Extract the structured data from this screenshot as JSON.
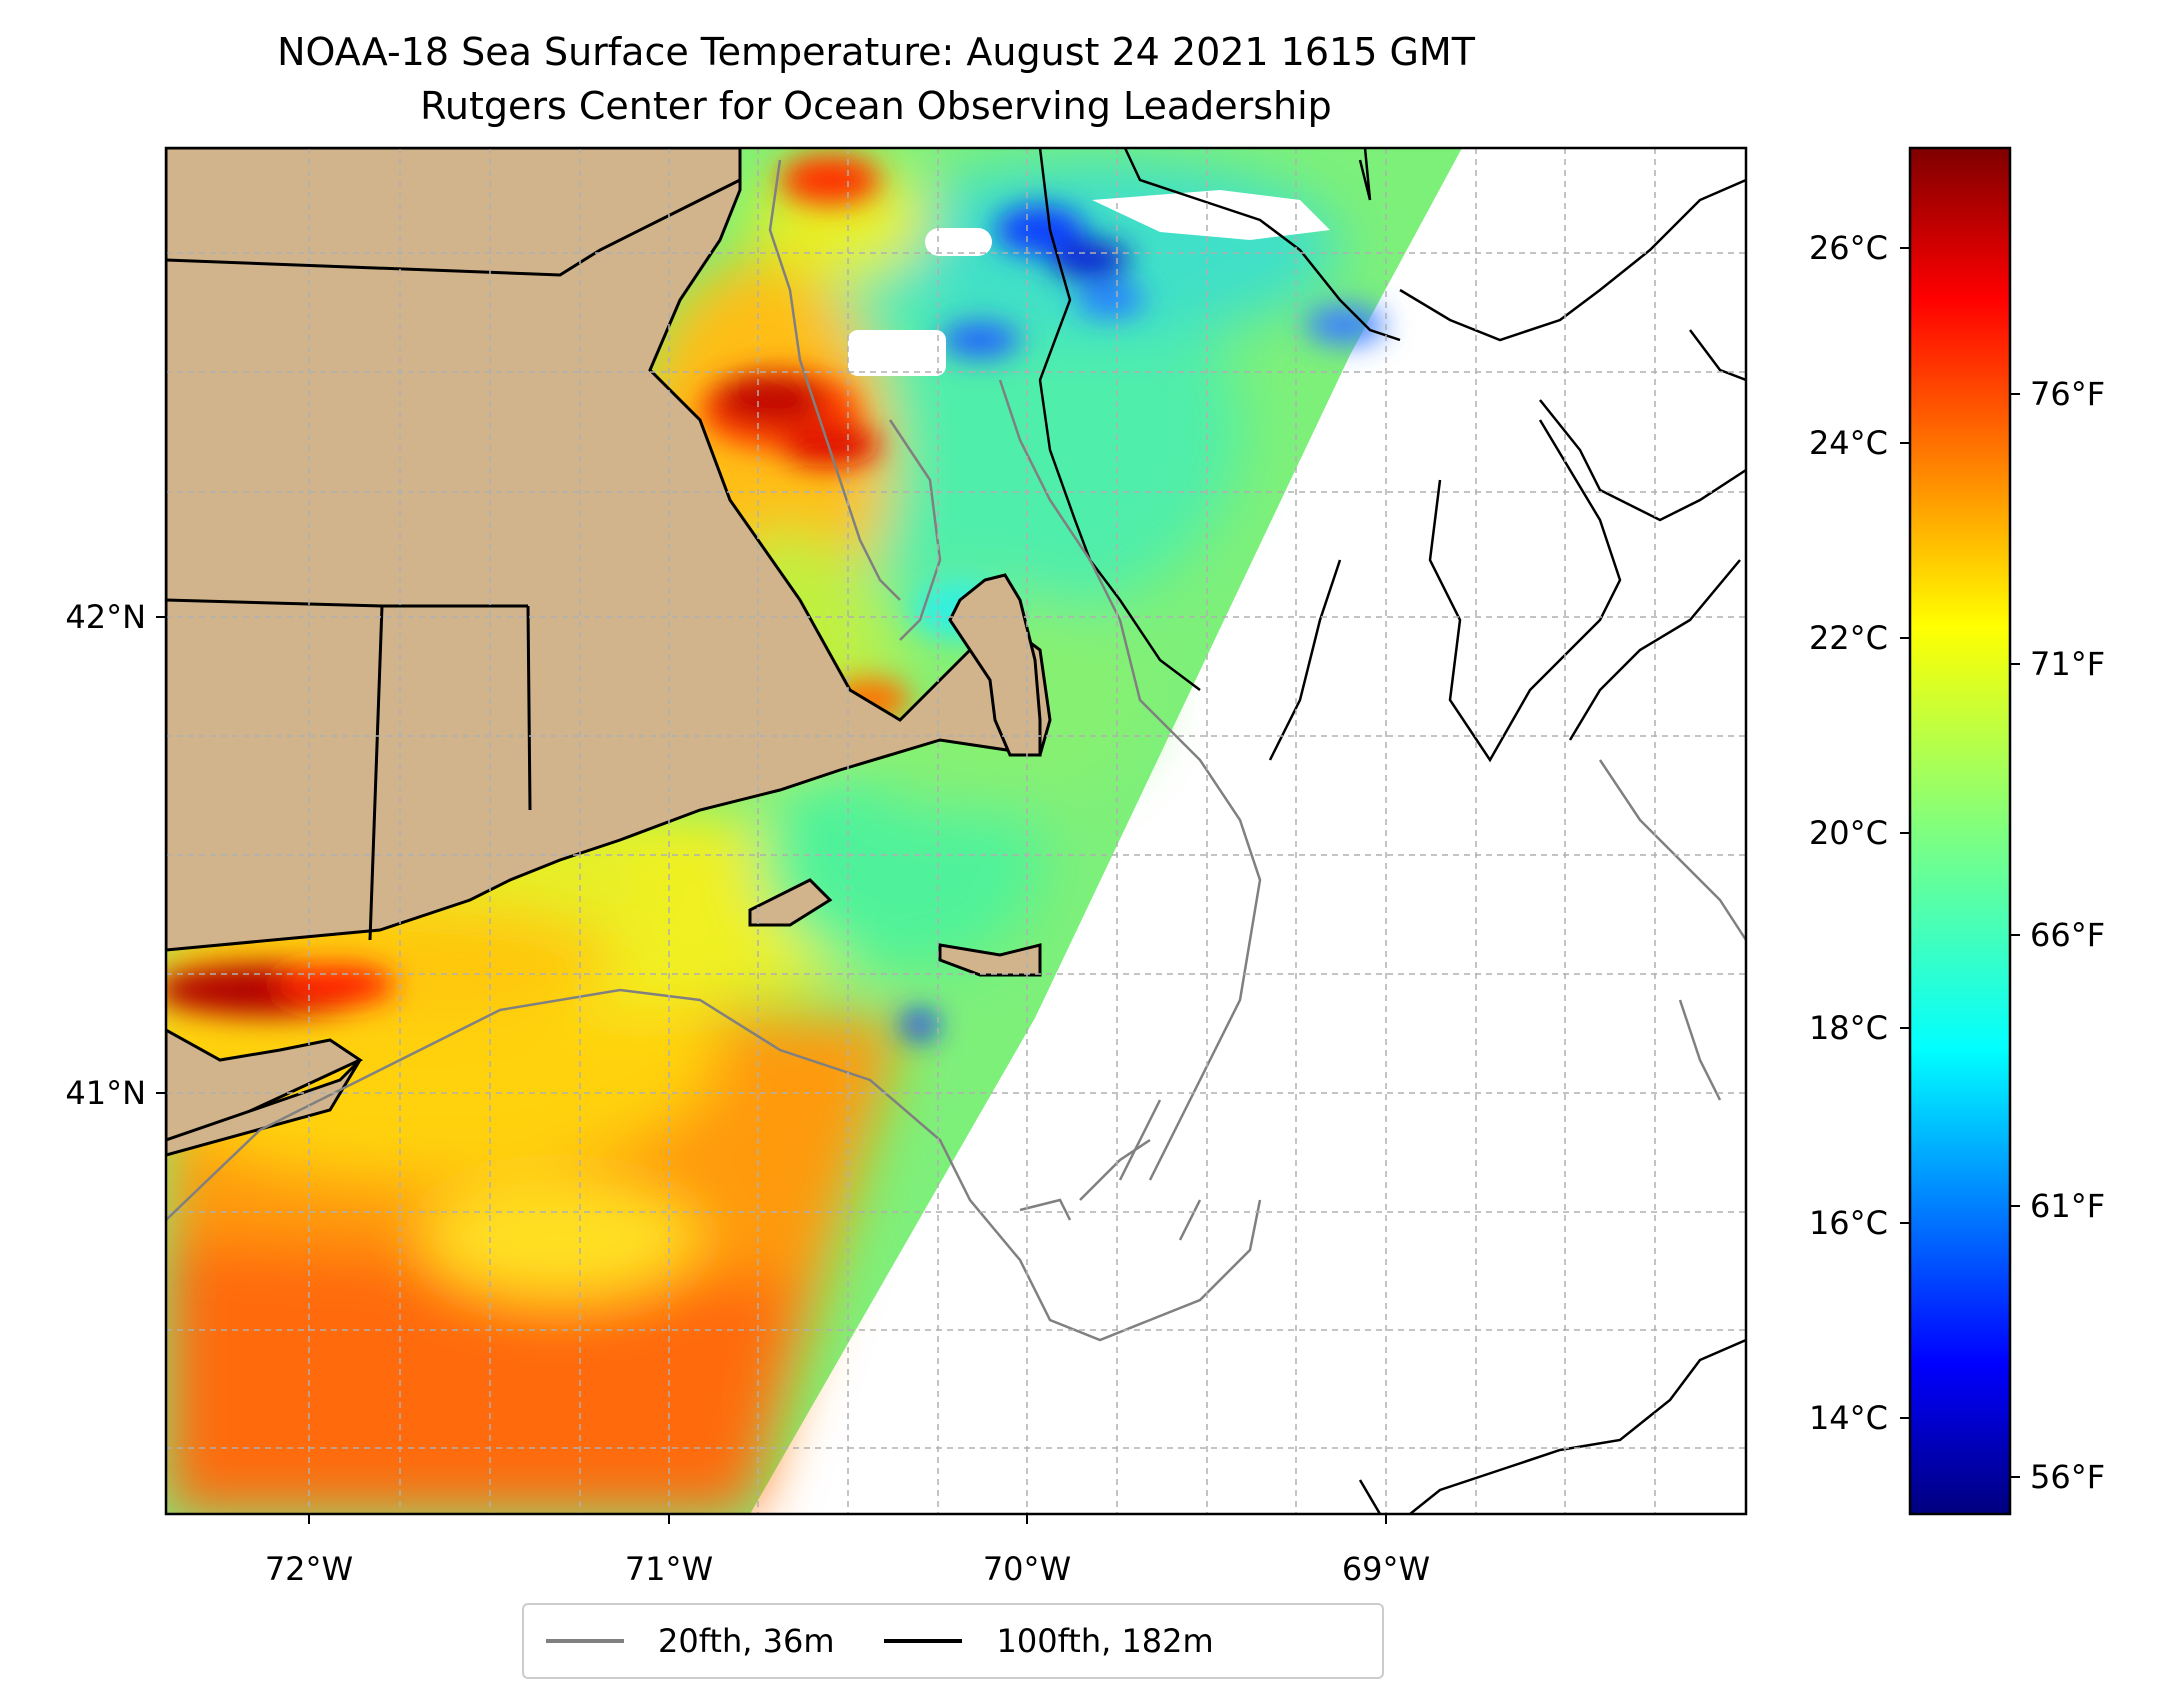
{
  "title": {
    "line1": "NOAA-18 Sea Surface Temperature: August 24 2021 1615 GMT",
    "line2": "Rutgers Center for Ocean Observing Leadership"
  },
  "map": {
    "lon_labels": [
      "72°W",
      "71°W",
      "70°W",
      "69°W"
    ],
    "lat_labels": [
      "42°N",
      "41°N"
    ],
    "land_color": "#d2b48c",
    "gridlines": true
  },
  "colorbar": {
    "celsius_ticks": [
      "26°C",
      "24°C",
      "22°C",
      "20°C",
      "18°C",
      "16°C",
      "14°C"
    ],
    "fahrenheit_ticks": [
      "76°F",
      "71°F",
      "66°F",
      "61°F",
      "56°F"
    ],
    "colormap": "jet",
    "colors": [
      "#00007f",
      "#0000ff",
      "#007fff",
      "#00ffff",
      "#7fff7f",
      "#ffff00",
      "#ff7f00",
      "#ff0000",
      "#7f0000"
    ]
  },
  "legend": {
    "items": [
      {
        "label": "20fth, 36m",
        "color": "#808080"
      },
      {
        "label": "100fth, 182m",
        "color": "#000000"
      }
    ]
  }
}
